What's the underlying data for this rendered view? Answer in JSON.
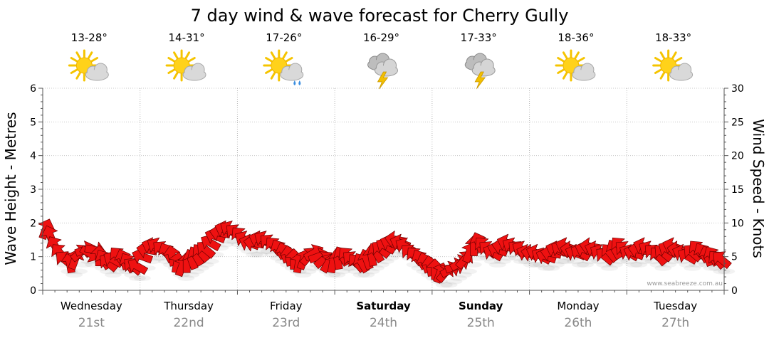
{
  "chart_data": {
    "type": "line",
    "title": "7 day wind & wave forecast for Cherry Gully",
    "ylabel_left": "Wave Height - Metres",
    "ylabel_right": "Wind Speed - Knots",
    "ylim_left": [
      0,
      6
    ],
    "ylim_right": [
      0,
      30
    ],
    "yticks_left": [
      "0",
      "1",
      "2",
      "3",
      "4",
      "5",
      "6"
    ],
    "yticks_right": [
      "0",
      "5",
      "10",
      "15",
      "20",
      "25",
      "30"
    ],
    "grid": true,
    "credit": "www.seabreeze.com.au",
    "days": [
      {
        "day": "Wednesday",
        "date": "21st",
        "temp": "13-28°",
        "icon": "sun-cloud-icon",
        "weekend": false
      },
      {
        "day": "Thursday",
        "date": "22nd",
        "temp": "14-31°",
        "icon": "sun-cloud-icon",
        "weekend": false
      },
      {
        "day": "Friday",
        "date": "23rd",
        "temp": "17-26°",
        "icon": "sun-cloud-rain-icon",
        "weekend": false
      },
      {
        "day": "Saturday",
        "date": "24th",
        "temp": "16-29°",
        "icon": "storm-icon",
        "weekend": true
      },
      {
        "day": "Sunday",
        "date": "25th",
        "temp": "17-33°",
        "icon": "storm-icon",
        "weekend": true
      },
      {
        "day": "Monday",
        "date": "26th",
        "temp": "18-36°",
        "icon": "sun-cloud-icon",
        "weekend": false
      },
      {
        "day": "Tuesday",
        "date": "27th",
        "temp": "18-33°",
        "icon": "sun-cloud-icon",
        "weekend": false
      }
    ],
    "wind_series": {
      "name": "Wind Speed (knots)",
      "color": "#ee1111",
      "points": [
        [
          0.0,
          9.0,
          200
        ],
        [
          0.05,
          8.0,
          160
        ],
        [
          0.1,
          6.5,
          150
        ],
        [
          0.15,
          5.5,
          140
        ],
        [
          0.2,
          4.5,
          130
        ],
        [
          0.25,
          4.0,
          170
        ],
        [
          0.3,
          4.5,
          200
        ],
        [
          0.35,
          5.5,
          230
        ],
        [
          0.4,
          6.0,
          250
        ],
        [
          0.45,
          5.5,
          300
        ],
        [
          0.5,
          6.0,
          280
        ],
        [
          0.55,
          5.0,
          180
        ],
        [
          0.6,
          4.5,
          150
        ],
        [
          0.65,
          4.0,
          130
        ],
        [
          0.7,
          4.5,
          120
        ],
        [
          0.75,
          5.0,
          140
        ],
        [
          0.8,
          4.5,
          160
        ],
        [
          0.85,
          4.0,
          150
        ],
        [
          0.9,
          3.5,
          130
        ],
        [
          0.95,
          3.5,
          120
        ],
        [
          1.0,
          5.0,
          110
        ],
        [
          1.05,
          6.0,
          100
        ],
        [
          1.1,
          6.5,
          110
        ],
        [
          1.15,
          6.5,
          120
        ],
        [
          1.2,
          6.0,
          130
        ],
        [
          1.25,
          5.5,
          150
        ],
        [
          1.3,
          5.0,
          170
        ],
        [
          1.35,
          4.0,
          190
        ],
        [
          1.4,
          3.5,
          200
        ],
        [
          1.45,
          4.0,
          180
        ],
        [
          1.5,
          4.5,
          160
        ],
        [
          1.55,
          5.0,
          150
        ],
        [
          1.6,
          5.5,
          140
        ],
        [
          1.65,
          6.0,
          130
        ],
        [
          1.7,
          7.0,
          120
        ],
        [
          1.75,
          8.0,
          110
        ],
        [
          1.8,
          8.5,
          100
        ],
        [
          1.85,
          9.0,
          110
        ],
        [
          1.9,
          9.0,
          120
        ],
        [
          1.95,
          8.5,
          130
        ],
        [
          2.0,
          8.0,
          140
        ],
        [
          2.05,
          7.5,
          120
        ],
        [
          2.1,
          7.0,
          110
        ],
        [
          2.15,
          7.0,
          100
        ],
        [
          2.2,
          7.5,
          110
        ],
        [
          2.25,
          7.5,
          120
        ],
        [
          2.3,
          7.0,
          130
        ],
        [
          2.35,
          6.5,
          140
        ],
        [
          2.4,
          6.0,
          150
        ],
        [
          2.45,
          5.5,
          160
        ],
        [
          2.5,
          5.0,
          170
        ],
        [
          2.55,
          4.5,
          180
        ],
        [
          2.6,
          4.0,
          190
        ],
        [
          2.65,
          4.5,
          200
        ],
        [
          2.7,
          5.0,
          220
        ],
        [
          2.75,
          5.5,
          240
        ],
        [
          2.8,
          5.0,
          250
        ],
        [
          2.85,
          4.5,
          230
        ],
        [
          2.9,
          4.0,
          210
        ],
        [
          2.95,
          4.0,
          190
        ],
        [
          3.0,
          4.5,
          170
        ],
        [
          3.05,
          5.0,
          150
        ],
        [
          3.1,
          5.0,
          140
        ],
        [
          3.15,
          4.5,
          130
        ],
        [
          3.2,
          4.0,
          140
        ],
        [
          3.25,
          4.0,
          150
        ],
        [
          3.3,
          4.5,
          160
        ],
        [
          3.35,
          5.0,
          170
        ],
        [
          3.4,
          5.5,
          150
        ],
        [
          3.45,
          6.0,
          130
        ],
        [
          3.5,
          6.5,
          120
        ],
        [
          3.55,
          7.0,
          110
        ],
        [
          3.6,
          7.5,
          100
        ],
        [
          3.65,
          7.0,
          110
        ],
        [
          3.7,
          6.5,
          120
        ],
        [
          3.75,
          5.5,
          130
        ],
        [
          3.8,
          5.0,
          140
        ],
        [
          3.85,
          4.5,
          150
        ],
        [
          3.9,
          4.0,
          160
        ],
        [
          3.95,
          3.5,
          170
        ],
        [
          4.0,
          3.0,
          180
        ],
        [
          4.05,
          2.5,
          200
        ],
        [
          4.1,
          2.5,
          220
        ],
        [
          4.15,
          3.0,
          240
        ],
        [
          4.2,
          3.5,
          250
        ],
        [
          4.25,
          4.0,
          240
        ],
        [
          4.3,
          4.5,
          220
        ],
        [
          4.35,
          5.5,
          200
        ],
        [
          4.4,
          6.5,
          180
        ],
        [
          4.45,
          7.0,
          160
        ],
        [
          4.5,
          6.5,
          140
        ],
        [
          4.55,
          6.0,
          130
        ],
        [
          4.6,
          5.5,
          120
        ],
        [
          4.65,
          6.0,
          110
        ],
        [
          4.7,
          6.5,
          100
        ],
        [
          4.75,
          7.0,
          110
        ],
        [
          4.8,
          6.5,
          120
        ],
        [
          4.85,
          6.0,
          130
        ],
        [
          4.9,
          6.0,
          120
        ],
        [
          4.95,
          5.5,
          110
        ],
        [
          5.0,
          5.5,
          100
        ],
        [
          5.05,
          5.5,
          110
        ],
        [
          5.1,
          5.0,
          120
        ],
        [
          5.15,
          5.0,
          110
        ],
        [
          5.2,
          5.5,
          100
        ],
        [
          5.25,
          6.0,
          110
        ],
        [
          5.3,
          6.0,
          120
        ],
        [
          5.35,
          6.5,
          110
        ],
        [
          5.4,
          6.0,
          100
        ],
        [
          5.45,
          5.5,
          110
        ],
        [
          5.5,
          5.5,
          120
        ],
        [
          5.55,
          6.0,
          110
        ],
        [
          5.6,
          6.5,
          100
        ],
        [
          5.65,
          6.0,
          110
        ],
        [
          5.7,
          5.5,
          120
        ],
        [
          5.75,
          5.0,
          130
        ],
        [
          5.8,
          5.5,
          140
        ],
        [
          5.85,
          6.0,
          150
        ],
        [
          5.9,
          6.5,
          140
        ],
        [
          5.95,
          6.0,
          130
        ],
        [
          6.0,
          5.5,
          120
        ],
        [
          6.05,
          5.5,
          110
        ],
        [
          6.1,
          6.0,
          100
        ],
        [
          6.15,
          6.5,
          110
        ],
        [
          6.2,
          6.0,
          120
        ],
        [
          6.25,
          5.5,
          130
        ],
        [
          6.3,
          5.0,
          140
        ],
        [
          6.35,
          5.5,
          130
        ],
        [
          6.4,
          6.0,
          120
        ],
        [
          6.45,
          6.5,
          110
        ],
        [
          6.5,
          6.0,
          100
        ],
        [
          6.55,
          5.5,
          110
        ],
        [
          6.6,
          5.0,
          120
        ],
        [
          6.65,
          5.5,
          130
        ],
        [
          6.7,
          6.0,
          140
        ],
        [
          6.75,
          5.5,
          150
        ],
        [
          6.8,
          5.0,
          160
        ],
        [
          6.85,
          5.0,
          150
        ],
        [
          6.9,
          4.5,
          140
        ],
        [
          6.95,
          4.5,
          130
        ]
      ]
    }
  }
}
